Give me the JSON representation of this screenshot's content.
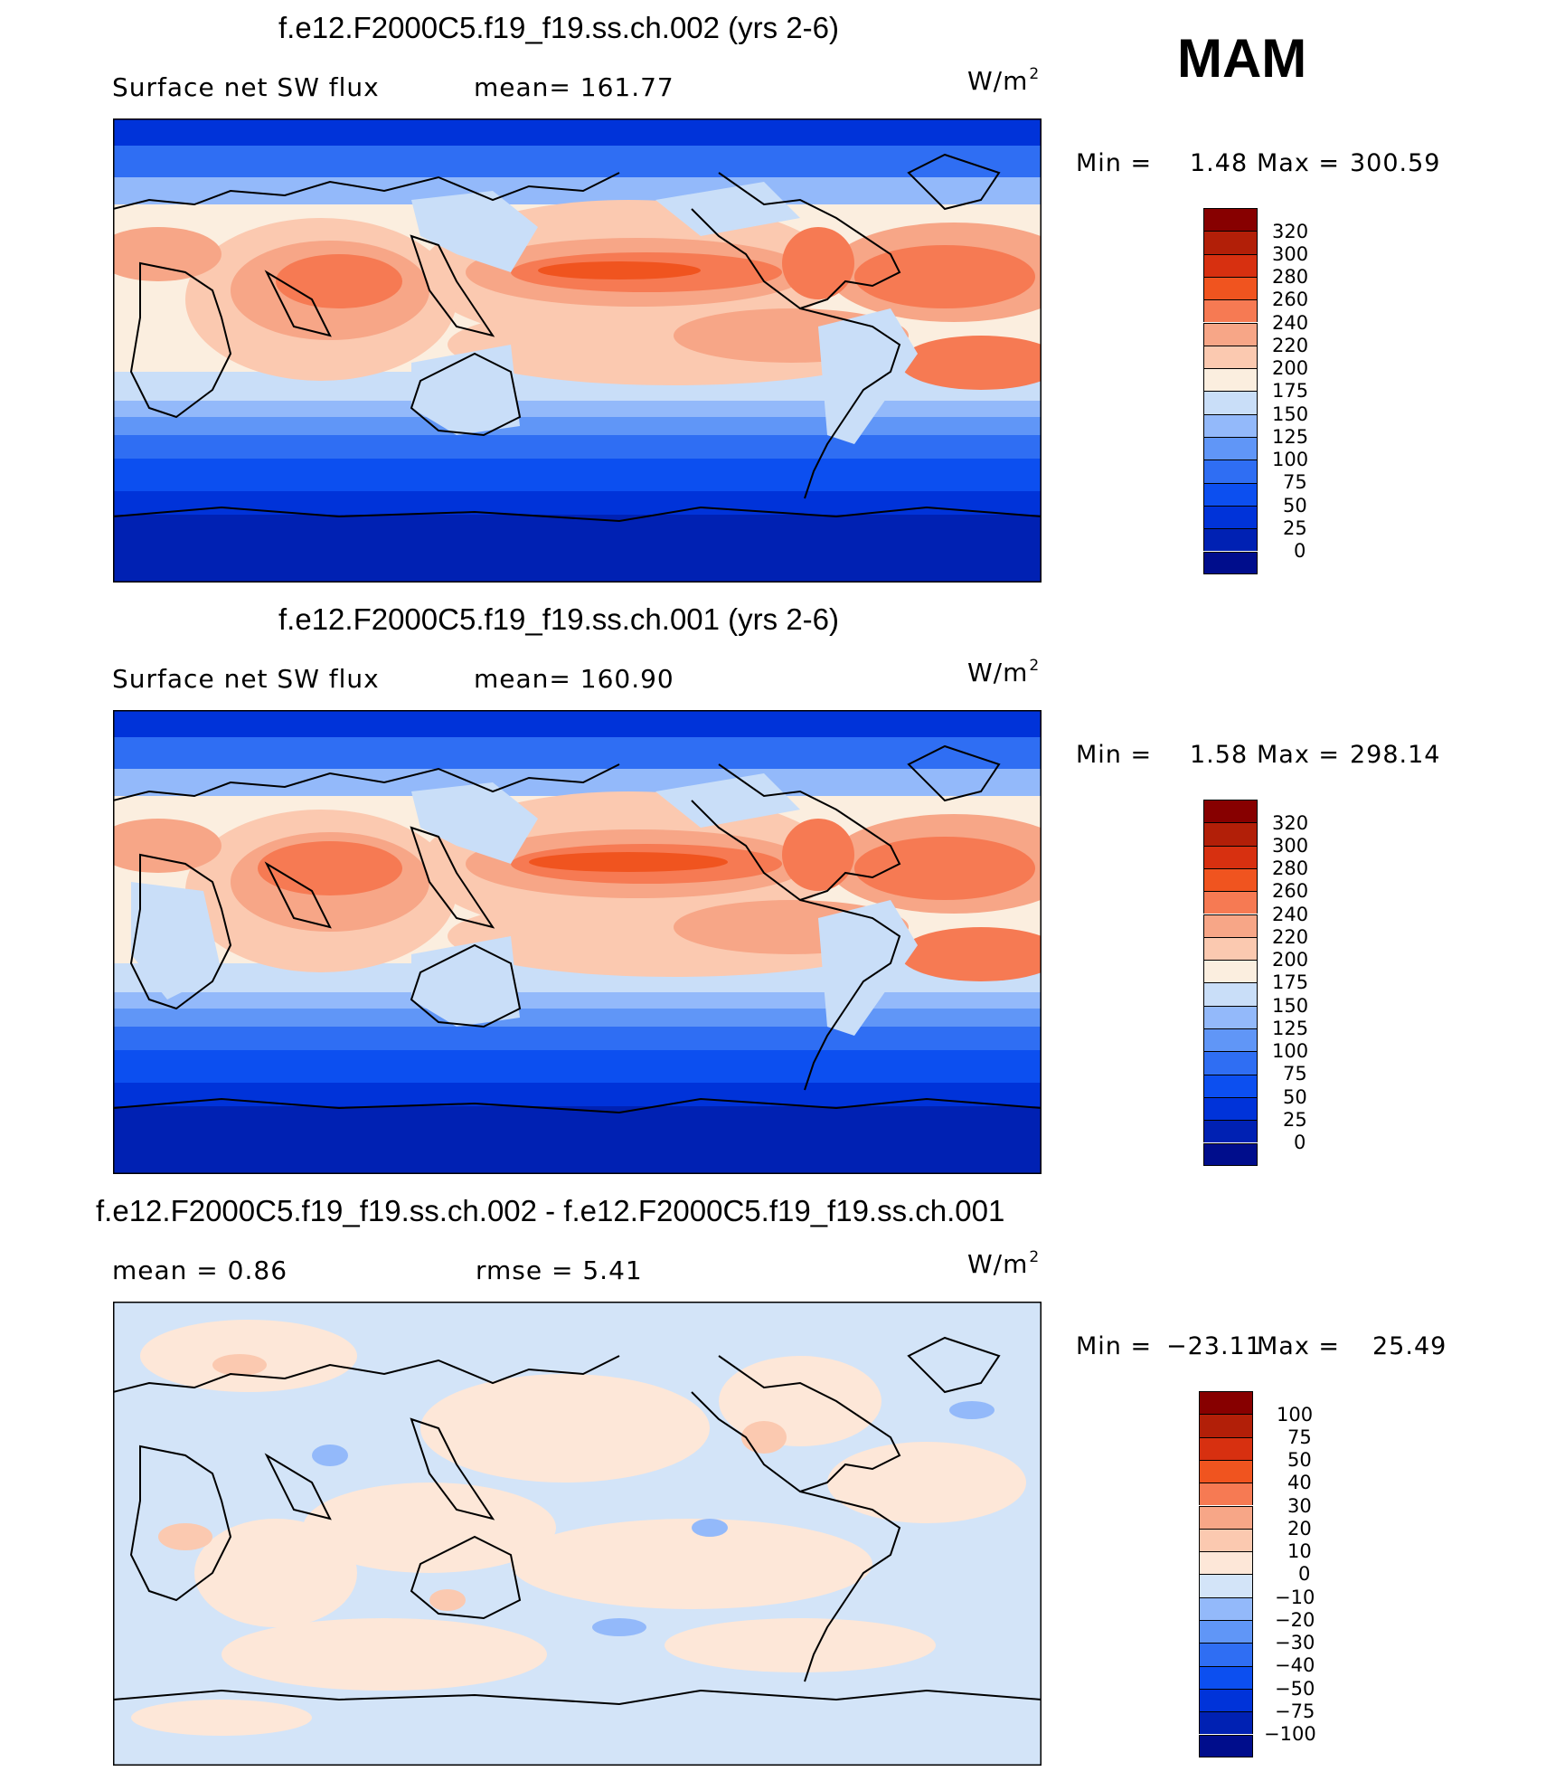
{
  "season": "MAM",
  "colors": {
    "abs_scale": [
      "#000d8c",
      "#0021b3",
      "#0033d9",
      "#0c4ff0",
      "#2f6ef3",
      "#6096f7",
      "#93b9fa",
      "#c9def8",
      "#fbeedf",
      "#fbc9b0",
      "#f7a687",
      "#f67a53",
      "#f0541f",
      "#d73010",
      "#b21f08",
      "#870000"
    ],
    "diff_scale": [
      "#000d8c",
      "#0021b3",
      "#0033d9",
      "#0c4ff0",
      "#2f6ef3",
      "#6096f7",
      "#93b9fa",
      "#d3e4f8",
      "#fde7d8",
      "#fbc9b0",
      "#f7a687",
      "#f67a53",
      "#f0541f",
      "#d73010",
      "#b21f08",
      "#870000"
    ]
  },
  "panels": [
    {
      "title": "f.e12.F2000C5.f19_f19.ss.ch.002 (yrs 2-6)",
      "left_label": "Surface net SW flux",
      "center_label": "mean=  161.77",
      "units": "W/m",
      "units_exp": "2",
      "min_label": "Min  =",
      "min_value": "1.48",
      "max_label": "Max  =",
      "max_value": "300.59",
      "colorbar": [
        "320",
        "300",
        "280",
        "260",
        "240",
        "220",
        "200",
        "175",
        "150",
        "125",
        "100",
        "75",
        "50",
        "25",
        "0"
      ],
      "map_icon": "world-map-shortwave-flux"
    },
    {
      "title": "f.e12.F2000C5.f19_f19.ss.ch.001 (yrs 2-6)",
      "left_label": "Surface net SW flux",
      "center_label": "mean=  160.90",
      "units": "W/m",
      "units_exp": "2",
      "min_label": "Min  =",
      "min_value": "1.58",
      "max_label": "Max  =",
      "max_value": "298.14",
      "colorbar": [
        "320",
        "300",
        "280",
        "260",
        "240",
        "220",
        "200",
        "175",
        "150",
        "125",
        "100",
        "75",
        "50",
        "25",
        "0"
      ],
      "map_icon": "world-map-shortwave-flux"
    },
    {
      "title": "f.e12.F2000C5.f19_f19.ss.ch.002 - f.e12.F2000C5.f19_f19.ss.ch.001",
      "left_label": "mean  =     0.86",
      "center_label": "rmse  =      5.41",
      "units": "W/m",
      "units_exp": "2",
      "min_label": "Min  =",
      "min_value": "−23.11",
      "max_label": "Max  =",
      "max_value": "25.49",
      "colorbar": [
        "100",
        "75",
        "50",
        "40",
        "30",
        "20",
        "10",
        "0",
        "−10",
        "−20",
        "−30",
        "−40",
        "−50",
        "−75",
        "−100"
      ],
      "map_icon": "world-map-difference"
    }
  ]
}
